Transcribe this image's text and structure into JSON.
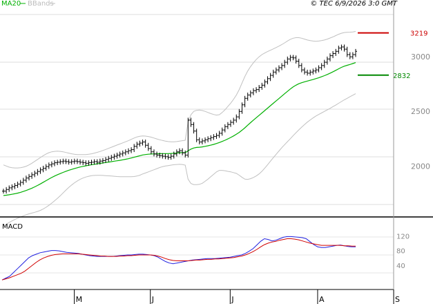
{
  "header": {
    "ma_legend": "MA20",
    "bb_legend": "BBands",
    "timestamp": "© TEC 6/9/2026 3:0 GMT"
  },
  "colors": {
    "ma": "#00b000",
    "bbands": "#c0c0c0",
    "resistance": "#cc0000",
    "support": "#008800",
    "macd": "#2020e0",
    "signal": "#d00000",
    "bars": "#000000",
    "grid": "#bbbbbb"
  },
  "chart_data": [
    {
      "type": "ohlc",
      "panel": "price",
      "legend": [
        "MA20",
        "BBands"
      ],
      "y_ticks": [
        "2000",
        "2500",
        "3000"
      ],
      "y_tick_values": [
        2000,
        2500,
        3000
      ],
      "ylim": [
        1540,
        3520
      ],
      "levels": [
        {
          "label": "3219",
          "value": 3219,
          "color": "#cc0000"
        },
        {
          "label": "2832",
          "value": 2832,
          "color": "#008800"
        }
      ],
      "close": [
        1770,
        1785,
        1800,
        1810,
        1822,
        1835,
        1850,
        1870,
        1890,
        1905,
        1920,
        1935,
        1950,
        1965,
        1980,
        1995,
        2010,
        2020,
        2030,
        2035,
        2040,
        2045,
        2040,
        2035,
        2040,
        2045,
        2040,
        2035,
        2030,
        2025,
        2030,
        2035,
        2040,
        2035,
        2045,
        2050,
        2060,
        2070,
        2080,
        2090,
        2100,
        2110,
        2120,
        2130,
        2140,
        2150,
        2180,
        2200,
        2210,
        2220,
        2190,
        2160,
        2130,
        2110,
        2100,
        2095,
        2090,
        2085,
        2080,
        2090,
        2110,
        2130,
        2140,
        2120,
        2100,
        2420,
        2380,
        2320,
        2240,
        2220,
        2230,
        2240,
        2250,
        2260,
        2270,
        2280,
        2300,
        2330,
        2360,
        2380,
        2400,
        2420,
        2450,
        2500,
        2560,
        2620,
        2650,
        2670,
        2690,
        2700,
        2720,
        2740,
        2770,
        2800,
        2830,
        2860,
        2880,
        2900,
        2920,
        2950,
        2980,
        2995,
        2990,
        2960,
        2920,
        2880,
        2860,
        2850,
        2860,
        2870,
        2880,
        2900,
        2920,
        2950,
        2980,
        3010,
        3030,
        3050,
        3080,
        3090,
        3070,
        3020,
        3000,
        3020,
        3050
      ],
      "ma20": [
        1730,
        1733,
        1737,
        1741,
        1746,
        1752,
        1759,
        1767,
        1776,
        1786,
        1797,
        1809,
        1822,
        1836,
        1851,
        1866,
        1881,
        1895,
        1908,
        1920,
        1931,
        1942,
        1952,
        1961,
        1969,
        1977,
        1984,
        1991,
        1997,
        2002,
        2007,
        2012,
        2016,
        2020,
        2024,
        2028,
        2032,
        2036,
        2040,
        2044,
        2048,
        2052,
        2057,
        2062,
        2067,
        2073,
        2080,
        2087,
        2094,
        2101,
        2105,
        2108,
        2110,
        2111,
        2112,
        2113,
        2114,
        2114,
        2114,
        2115,
        2117,
        2119,
        2122,
        2123,
        2122,
        2140,
        2155,
        2165,
        2170,
        2172,
        2175,
        2180,
        2185,
        2191,
        2198,
        2206,
        2215,
        2225,
        2236,
        2248,
        2261,
        2275,
        2291,
        2308,
        2328,
        2350,
        2374,
        2397,
        2420,
        2442,
        2464,
        2486,
        2508,
        2530,
        2552,
        2574,
        2596,
        2618,
        2640,
        2662,
        2684,
        2705,
        2724,
        2740,
        2753,
        2763,
        2771,
        2778,
        2785,
        2792,
        2800,
        2808,
        2817,
        2827,
        2838,
        2850,
        2863,
        2876,
        2890,
        2903,
        2914,
        2922,
        2930,
        2938,
        2947
      ],
      "bb_upper": [
        2010,
        2000,
        1990,
        1985,
        1982,
        1982,
        1985,
        1990,
        1998,
        2010,
        2025,
        2042,
        2060,
        2078,
        2095,
        2110,
        2122,
        2130,
        2134,
        2136,
        2134,
        2130,
        2124,
        2118,
        2112,
        2108,
        2105,
        2104,
        2104,
        2105,
        2108,
        2112,
        2118,
        2125,
        2133,
        2142,
        2152,
        2162,
        2172,
        2182,
        2192,
        2202,
        2212,
        2222,
        2232,
        2244,
        2256,
        2266,
        2272,
        2275,
        2274,
        2270,
        2264,
        2256,
        2248,
        2240,
        2234,
        2228,
        2224,
        2222,
        2222,
        2224,
        2228,
        2232,
        2236,
        2400,
        2470,
        2500,
        2510,
        2512,
        2508,
        2500,
        2490,
        2480,
        2472,
        2466,
        2470,
        2490,
        2515,
        2545,
        2575,
        2610,
        2650,
        2700,
        2760,
        2820,
        2870,
        2910,
        2945,
        2975,
        3000,
        3020,
        3035,
        3048,
        3060,
        3072,
        3085,
        3098,
        3112,
        3128,
        3145,
        3160,
        3170,
        3175,
        3175,
        3170,
        3162,
        3154,
        3148,
        3144,
        3142,
        3144,
        3148,
        3154,
        3162,
        3172,
        3182,
        3194,
        3206,
        3216,
        3222,
        3224,
        3225,
        3228,
        3232
      ],
      "bb_lower": [
        1450,
        1466,
        1484,
        1497,
        1510,
        1522,
        1533,
        1544,
        1554,
        1562,
        1569,
        1576,
        1584,
        1594,
        1607,
        1622,
        1640,
        1660,
        1682,
        1704,
        1728,
        1754,
        1780,
        1804,
        1826,
        1846,
        1863,
        1878,
        1890,
        1899,
        1906,
        1912,
        1914,
        1915,
        1915,
        1914,
        1912,
        1910,
        1908,
        1906,
        1904,
        1902,
        1902,
        1902,
        1902,
        1902,
        1904,
        1908,
        1916,
        1927,
        1936,
        1946,
        1956,
        1966,
        1976,
        1986,
        1994,
        2000,
        2004,
        2008,
        2012,
        2014,
        2016,
        2014,
        2008,
        1880,
        1840,
        1830,
        1830,
        1832,
        1842,
        1860,
        1880,
        1902,
        1924,
        1946,
        1960,
        1960,
        1957,
        1951,
        1947,
        1940,
        1932,
        1916,
        1896,
        1880,
        1878,
        1884,
        1895,
        1909,
        1928,
        1952,
        1981,
        2012,
        2044,
        2076,
        2107,
        2138,
        2168,
        2196,
        2223,
        2250,
        2278,
        2305,
        2331,
        2356,
        2380,
        2402,
        2422,
        2440,
        2458,
        2472,
        2486,
        2500,
        2514,
        2528,
        2544,
        2558,
        2574,
        2590,
        2606,
        2620,
        2635,
        2648,
        2662
      ]
    },
    {
      "type": "line",
      "panel": "macd",
      "title": "MACD",
      "y_ticks": [
        "40",
        "80",
        "120"
      ],
      "y_tick_values": [
        40,
        80,
        120
      ],
      "ylim": [
        -26,
        160
      ],
      "x_ticks": [
        {
          "label": "M",
          "index": 19
        },
        {
          "label": "J",
          "index": 39
        },
        {
          "label": "J",
          "index": 60
        },
        {
          "label": "A",
          "index": 83
        },
        {
          "label": "S",
          "index": 103
        }
      ],
      "series": [
        {
          "key": "macd",
          "values": [
            0,
            5,
            10,
            20,
            30,
            40,
            50,
            60,
            66,
            70,
            74,
            76,
            78,
            80,
            80,
            79,
            77,
            75,
            74,
            73,
            72,
            70,
            68,
            66,
            65,
            64,
            64,
            64,
            64,
            64,
            65,
            66,
            67,
            68,
            68,
            69,
            70,
            70,
            69,
            68,
            66,
            62,
            56,
            50,
            46,
            44,
            46,
            48,
            50,
            52,
            54,
            55,
            56,
            57,
            58,
            58,
            58,
            59,
            60,
            61,
            62,
            64,
            66,
            68,
            72,
            78,
            85,
            95,
            105,
            112,
            110,
            106,
            108,
            112,
            116,
            118,
            118,
            117,
            116,
            115,
            112,
            104,
            96,
            90,
            88,
            88,
            90,
            92,
            94,
            95,
            93,
            91,
            90,
            90
          ]
        },
        {
          "key": "signal",
          "values": [
            0,
            3,
            6,
            10,
            14,
            18,
            24,
            32,
            40,
            48,
            55,
            60,
            64,
            67,
            69,
            70,
            71,
            71,
            71,
            71,
            71,
            70,
            69,
            68,
            67,
            66,
            65,
            65,
            64,
            64,
            64,
            65,
            65,
            66,
            66,
            67,
            68,
            68,
            68,
            68,
            67,
            65,
            62,
            58,
            55,
            53,
            52,
            52,
            52,
            52,
            53,
            54,
            54,
            55,
            56,
            56,
            57,
            57,
            58,
            59,
            60,
            61,
            63,
            65,
            68,
            72,
            77,
            83,
            90,
            96,
            100,
            103,
            105,
            108,
            110,
            112,
            112,
            111,
            109,
            106,
            103,
            100,
            98,
            96,
            94,
            94,
            94,
            94,
            94,
            94,
            93,
            93,
            92,
            92
          ]
        }
      ]
    }
  ]
}
